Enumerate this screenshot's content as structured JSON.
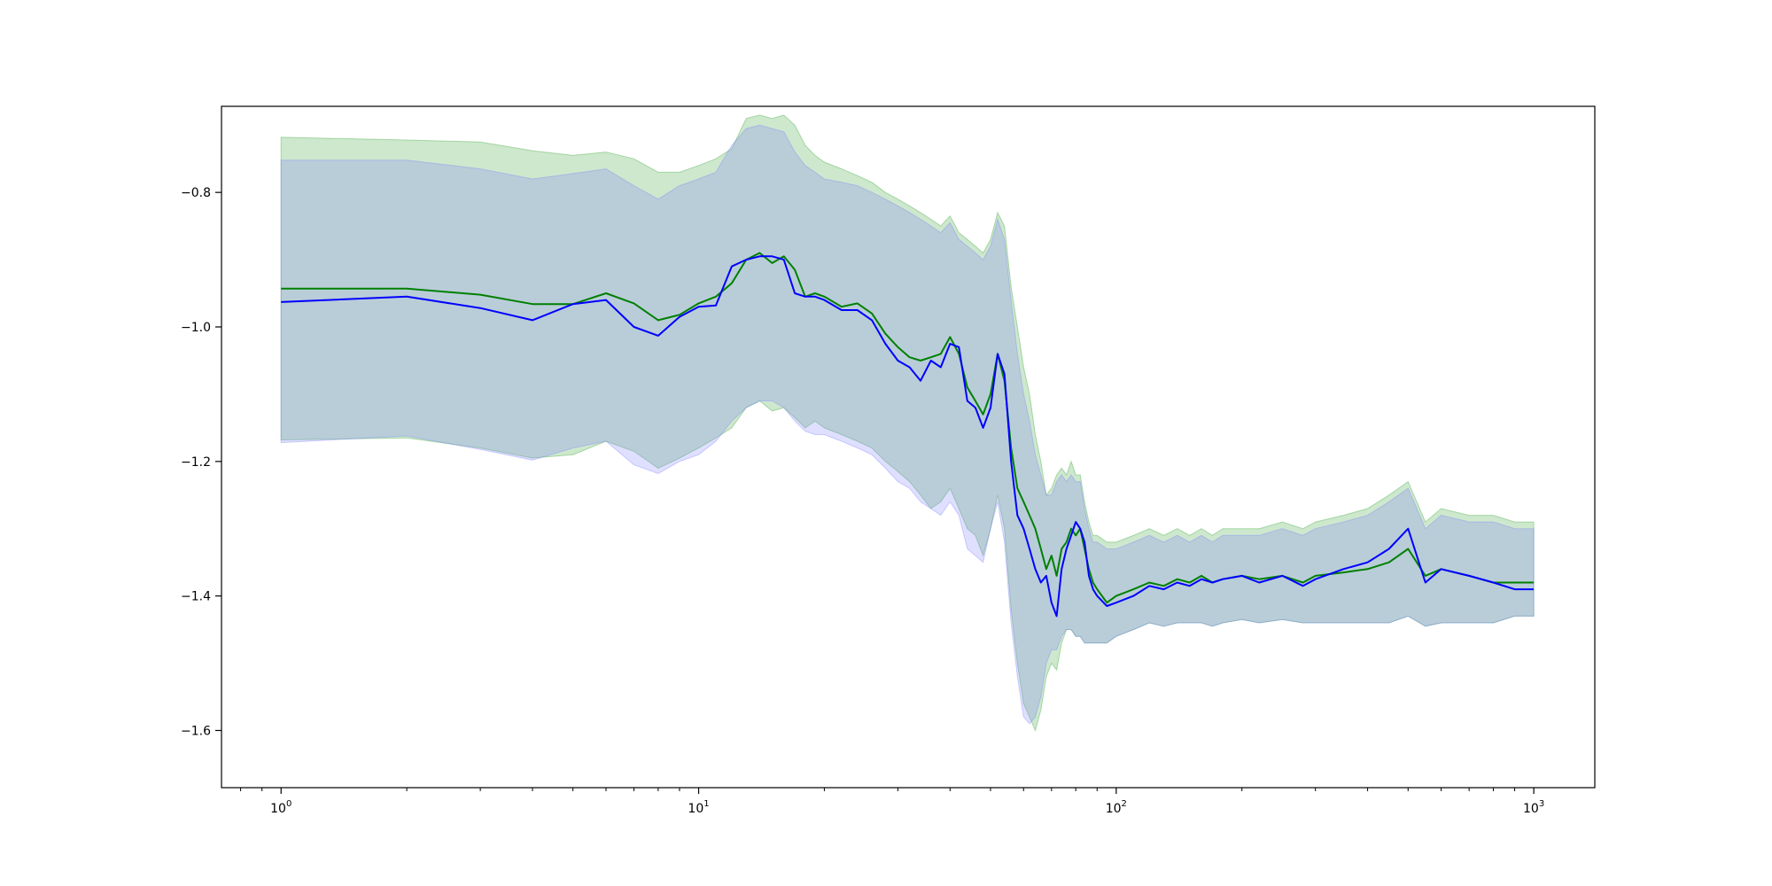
{
  "chart_data": {
    "type": "line",
    "title": "",
    "xlabel": "",
    "ylabel": "",
    "xscale": "log",
    "xlim": [
      0.72,
      1400
    ],
    "ylim": [
      -1.685,
      -0.672
    ],
    "grid": false,
    "legend": "none",
    "x_ticks": [
      {
        "value": 1,
        "label": "10",
        "exp": "0"
      },
      {
        "value": 10,
        "label": "10",
        "exp": "1"
      },
      {
        "value": 100,
        "label": "10",
        "exp": "2"
      },
      {
        "value": 1000,
        "label": "10",
        "exp": "3"
      }
    ],
    "y_ticks": [
      {
        "value": -0.8,
        "label": "−0.8"
      },
      {
        "value": -1.0,
        "label": "−1.0"
      },
      {
        "value": -1.2,
        "label": "−1.2"
      },
      {
        "value": -1.4,
        "label": "−1.4"
      },
      {
        "value": -1.6,
        "label": "−1.6"
      }
    ],
    "series": [
      {
        "color": "#008000",
        "band_color": "#2ca02c",
        "x": [
          1,
          2,
          3,
          4,
          5,
          6,
          7,
          8,
          9,
          10,
          11,
          12,
          13,
          14,
          15,
          16,
          17,
          18,
          19,
          20,
          22,
          24,
          26,
          28,
          30,
          32,
          34,
          36,
          38,
          40,
          42,
          44,
          46,
          48,
          50,
          52,
          54,
          56,
          58,
          60,
          62,
          64,
          66,
          68,
          70,
          72,
          74,
          76,
          78,
          80,
          82,
          84,
          86,
          88,
          90,
          95,
          100,
          110,
          120,
          130,
          140,
          150,
          160,
          170,
          180,
          200,
          220,
          250,
          280,
          300,
          350,
          400,
          450,
          500,
          550,
          600,
          700,
          800,
          900,
          1000
        ],
        "mean": [
          -0.943,
          -0.943,
          -0.952,
          -0.966,
          -0.966,
          -0.95,
          -0.965,
          -0.99,
          -0.982,
          -0.965,
          -0.955,
          -0.935,
          -0.9,
          -0.89,
          -0.905,
          -0.895,
          -0.915,
          -0.955,
          -0.95,
          -0.955,
          -0.97,
          -0.965,
          -0.98,
          -1.01,
          -1.03,
          -1.045,
          -1.05,
          -1.045,
          -1.04,
          -1.015,
          -1.04,
          -1.09,
          -1.11,
          -1.13,
          -1.1,
          -1.04,
          -1.08,
          -1.18,
          -1.24,
          -1.26,
          -1.28,
          -1.3,
          -1.33,
          -1.36,
          -1.34,
          -1.37,
          -1.33,
          -1.32,
          -1.3,
          -1.31,
          -1.3,
          -1.33,
          -1.36,
          -1.38,
          -1.39,
          -1.41,
          -1.4,
          -1.39,
          -1.38,
          -1.385,
          -1.375,
          -1.38,
          -1.37,
          -1.38,
          -1.375,
          -1.37,
          -1.375,
          -1.37,
          -1.38,
          -1.37,
          -1.365,
          -1.36,
          -1.35,
          -1.33,
          -1.37,
          -1.36,
          -1.37,
          -1.38,
          -1.38,
          -1.38
        ],
        "lower": [
          -1.168,
          -1.165,
          -1.18,
          -1.195,
          -1.19,
          -1.17,
          -1.185,
          -1.21,
          -1.195,
          -1.18,
          -1.165,
          -1.15,
          -1.12,
          -1.11,
          -1.125,
          -1.12,
          -1.135,
          -1.15,
          -1.14,
          -1.15,
          -1.16,
          -1.17,
          -1.18,
          -1.2,
          -1.215,
          -1.23,
          -1.25,
          -1.27,
          -1.26,
          -1.24,
          -1.27,
          -1.3,
          -1.31,
          -1.34,
          -1.3,
          -1.25,
          -1.3,
          -1.42,
          -1.5,
          -1.56,
          -1.58,
          -1.6,
          -1.57,
          -1.52,
          -1.5,
          -1.51,
          -1.47,
          -1.45,
          -1.45,
          -1.46,
          -1.46,
          -1.47,
          -1.47,
          -1.47,
          -1.47,
          -1.47,
          -1.46,
          -1.45,
          -1.44,
          -1.445,
          -1.44,
          -1.44,
          -1.44,
          -1.445,
          -1.44,
          -1.435,
          -1.44,
          -1.435,
          -1.44,
          -1.44,
          -1.44,
          -1.44,
          -1.44,
          -1.43,
          -1.445,
          -1.44,
          -1.44,
          -1.44,
          -1.43,
          -1.43
        ],
        "upper": [
          -0.718,
          -0.722,
          -0.725,
          -0.738,
          -0.745,
          -0.74,
          -0.75,
          -0.77,
          -0.77,
          -0.76,
          -0.75,
          -0.735,
          -0.69,
          -0.685,
          -0.69,
          -0.685,
          -0.7,
          -0.73,
          -0.745,
          -0.755,
          -0.765,
          -0.775,
          -0.785,
          -0.8,
          -0.81,
          -0.82,
          -0.83,
          -0.84,
          -0.85,
          -0.835,
          -0.86,
          -0.87,
          -0.88,
          -0.89,
          -0.87,
          -0.83,
          -0.85,
          -0.94,
          -1.0,
          -1.06,
          -1.1,
          -1.16,
          -1.2,
          -1.25,
          -1.24,
          -1.22,
          -1.21,
          -1.22,
          -1.2,
          -1.22,
          -1.22,
          -1.26,
          -1.29,
          -1.31,
          -1.31,
          -1.32,
          -1.32,
          -1.31,
          -1.3,
          -1.31,
          -1.3,
          -1.31,
          -1.3,
          -1.31,
          -1.3,
          -1.3,
          -1.3,
          -1.29,
          -1.3,
          -1.29,
          -1.28,
          -1.27,
          -1.25,
          -1.23,
          -1.29,
          -1.27,
          -1.28,
          -1.28,
          -1.29,
          -1.29
        ]
      },
      {
        "color": "#0000ff",
        "band_color": "#7b7bff",
        "x": [
          1,
          2,
          3,
          4,
          5,
          6,
          7,
          8,
          9,
          10,
          11,
          12,
          13,
          14,
          15,
          16,
          17,
          18,
          19,
          20,
          22,
          24,
          26,
          28,
          30,
          32,
          34,
          36,
          38,
          40,
          42,
          44,
          46,
          48,
          50,
          52,
          54,
          56,
          58,
          60,
          62,
          64,
          66,
          68,
          70,
          72,
          74,
          76,
          78,
          80,
          82,
          84,
          86,
          88,
          90,
          95,
          100,
          110,
          120,
          130,
          140,
          150,
          160,
          170,
          180,
          200,
          220,
          250,
          280,
          300,
          350,
          400,
          450,
          500,
          550,
          600,
          700,
          800,
          900,
          1000
        ],
        "mean": [
          -0.963,
          -0.955,
          -0.972,
          -0.99,
          -0.966,
          -0.96,
          -1.0,
          -1.013,
          -0.985,
          -0.97,
          -0.968,
          -0.91,
          -0.9,
          -0.895,
          -0.895,
          -0.9,
          -0.95,
          -0.955,
          -0.955,
          -0.96,
          -0.975,
          -0.975,
          -0.99,
          -1.025,
          -1.05,
          -1.06,
          -1.08,
          -1.05,
          -1.06,
          -1.025,
          -1.03,
          -1.11,
          -1.12,
          -1.15,
          -1.12,
          -1.04,
          -1.07,
          -1.2,
          -1.28,
          -1.3,
          -1.33,
          -1.36,
          -1.38,
          -1.37,
          -1.41,
          -1.43,
          -1.36,
          -1.33,
          -1.31,
          -1.29,
          -1.3,
          -1.32,
          -1.37,
          -1.39,
          -1.4,
          -1.415,
          -1.41,
          -1.4,
          -1.385,
          -1.39,
          -1.38,
          -1.385,
          -1.375,
          -1.38,
          -1.375,
          -1.37,
          -1.38,
          -1.37,
          -1.385,
          -1.375,
          -1.36,
          -1.35,
          -1.33,
          -1.3,
          -1.38,
          -1.36,
          -1.37,
          -1.38,
          -1.39,
          -1.39
        ],
        "lower": [
          -1.172,
          -1.162,
          -1.182,
          -1.198,
          -1.18,
          -1.17,
          -1.205,
          -1.218,
          -1.2,
          -1.19,
          -1.17,
          -1.14,
          -1.12,
          -1.11,
          -1.11,
          -1.12,
          -1.14,
          -1.155,
          -1.16,
          -1.16,
          -1.17,
          -1.18,
          -1.19,
          -1.21,
          -1.23,
          -1.24,
          -1.26,
          -1.27,
          -1.28,
          -1.26,
          -1.28,
          -1.33,
          -1.34,
          -1.35,
          -1.3,
          -1.26,
          -1.32,
          -1.44,
          -1.52,
          -1.58,
          -1.59,
          -1.58,
          -1.55,
          -1.5,
          -1.48,
          -1.48,
          -1.46,
          -1.45,
          -1.45,
          -1.46,
          -1.46,
          -1.47,
          -1.47,
          -1.47,
          -1.47,
          -1.47,
          -1.46,
          -1.45,
          -1.44,
          -1.445,
          -1.44,
          -1.44,
          -1.44,
          -1.445,
          -1.44,
          -1.435,
          -1.44,
          -1.435,
          -1.44,
          -1.44,
          -1.44,
          -1.44,
          -1.44,
          -1.43,
          -1.445,
          -1.44,
          -1.44,
          -1.44,
          -1.43,
          -1.43
        ],
        "upper": [
          -0.752,
          -0.752,
          -0.765,
          -0.78,
          -0.772,
          -0.765,
          -0.79,
          -0.81,
          -0.79,
          -0.78,
          -0.77,
          -0.73,
          -0.705,
          -0.7,
          -0.705,
          -0.71,
          -0.74,
          -0.76,
          -0.77,
          -0.78,
          -0.785,
          -0.79,
          -0.8,
          -0.81,
          -0.82,
          -0.83,
          -0.84,
          -0.85,
          -0.86,
          -0.845,
          -0.87,
          -0.88,
          -0.89,
          -0.9,
          -0.88,
          -0.84,
          -0.87,
          -0.96,
          -1.04,
          -1.1,
          -1.14,
          -1.19,
          -1.22,
          -1.25,
          -1.25,
          -1.23,
          -1.22,
          -1.23,
          -1.22,
          -1.23,
          -1.23,
          -1.27,
          -1.3,
          -1.32,
          -1.32,
          -1.33,
          -1.33,
          -1.32,
          -1.31,
          -1.32,
          -1.31,
          -1.32,
          -1.31,
          -1.32,
          -1.31,
          -1.31,
          -1.31,
          -1.3,
          -1.31,
          -1.3,
          -1.29,
          -1.28,
          -1.26,
          -1.24,
          -1.3,
          -1.28,
          -1.29,
          -1.29,
          -1.3,
          -1.3
        ]
      }
    ]
  }
}
